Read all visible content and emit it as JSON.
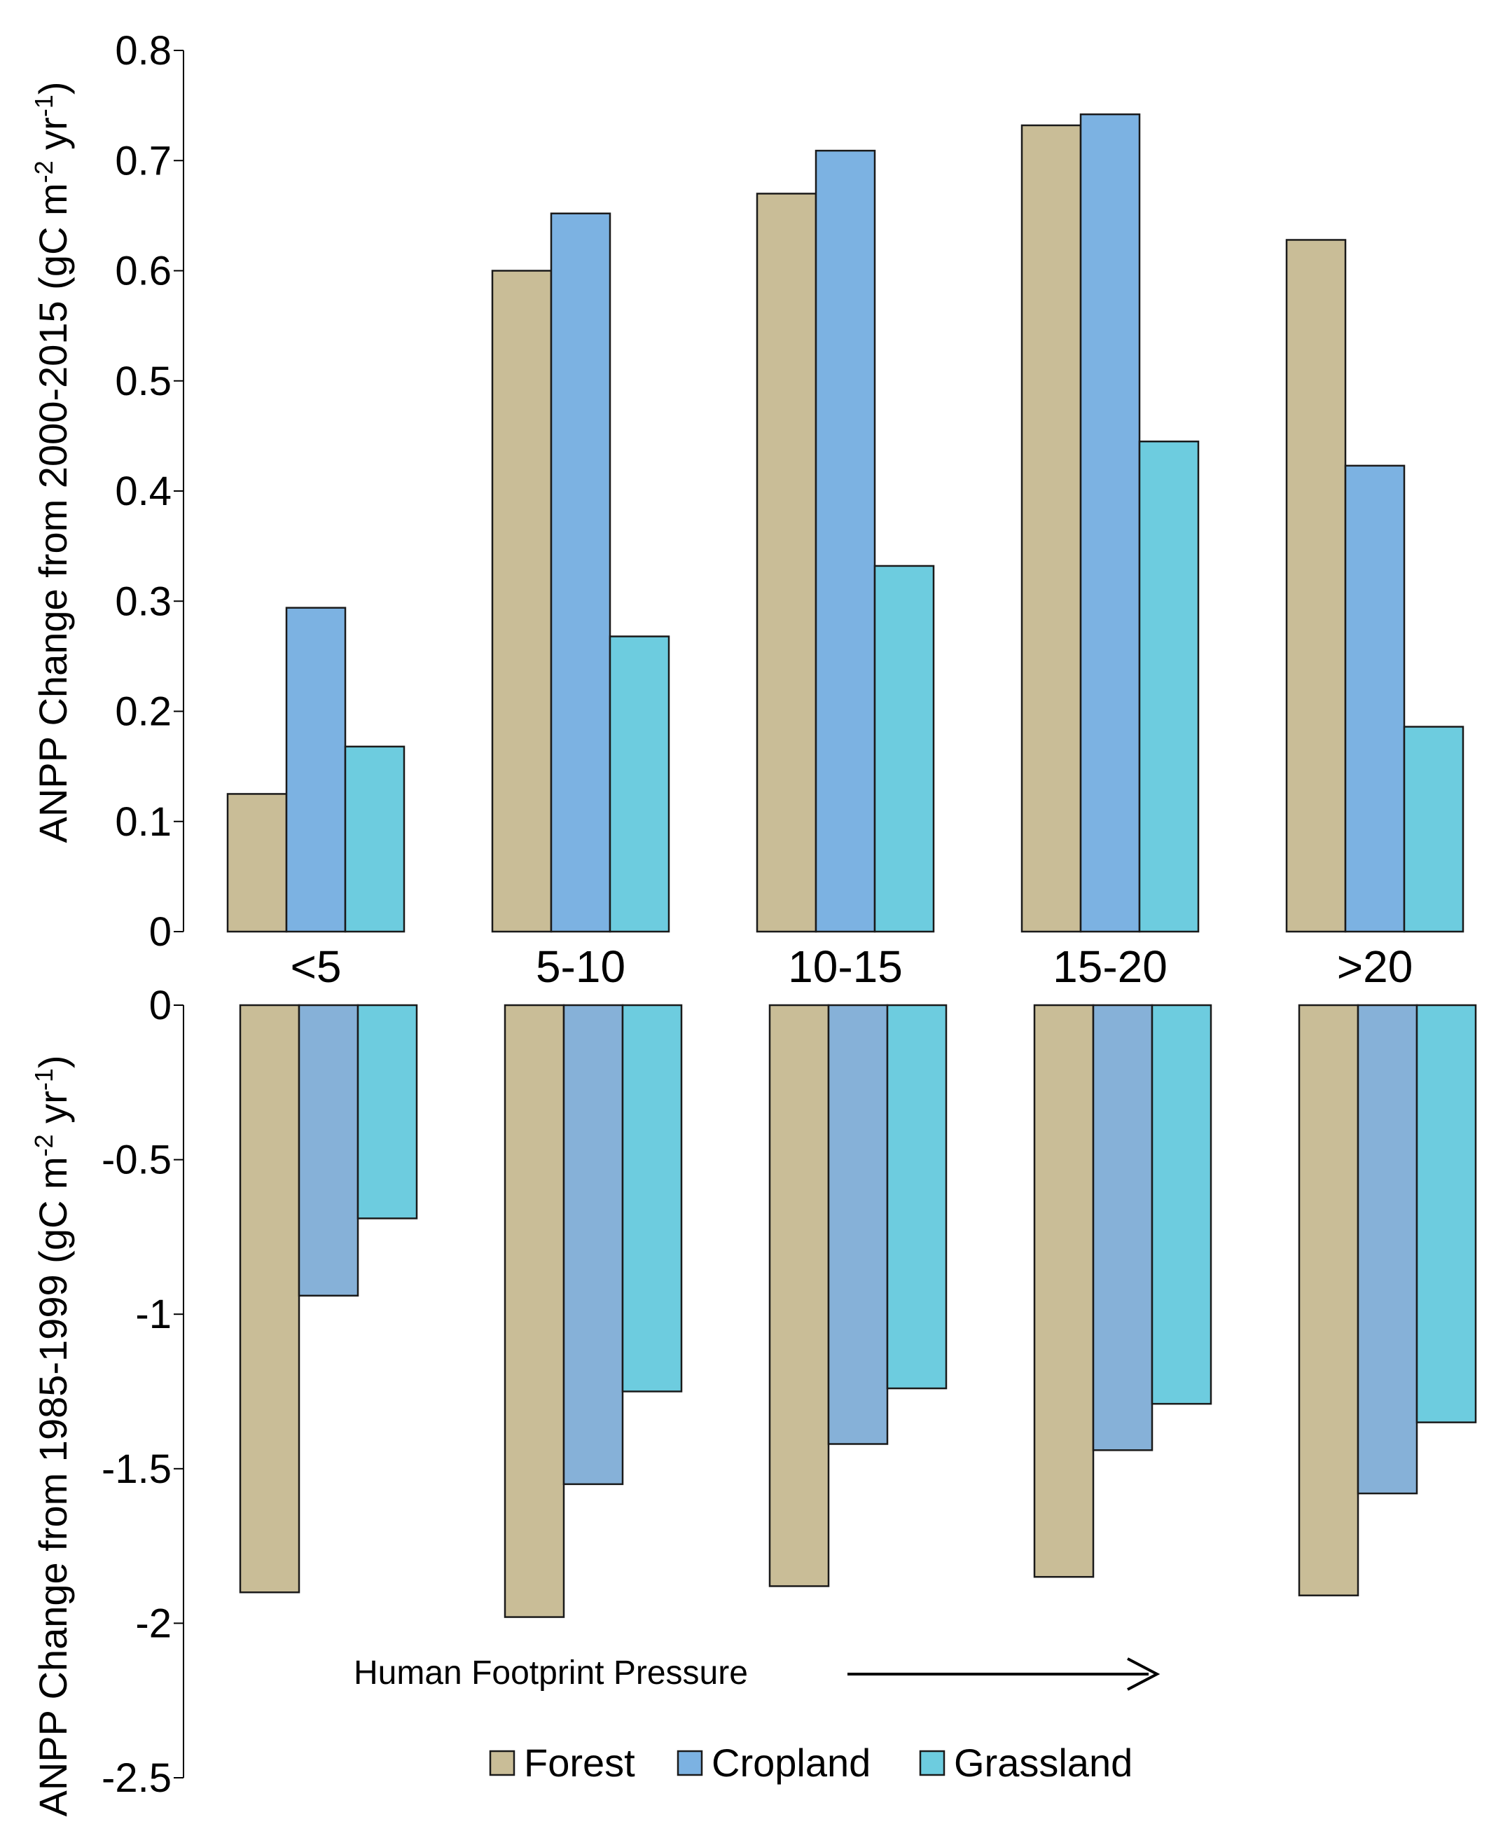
{
  "chart_data": [
    {
      "type": "bar",
      "panel": "top",
      "ylabel": "ANPP Change from 2000-2015 (gC m-2 yr-1)",
      "ylabel_main": "ANPP Change from 2000-2015 (gC m",
      "ylabel_sup1": "-2",
      "ylabel_mid": " yr",
      "ylabel_sup2": "-1",
      "ylabel_end": ")",
      "ylim": [
        0,
        0.8
      ],
      "yticks": [
        0,
        0.1,
        0.2,
        0.3,
        0.4,
        0.5,
        0.6,
        0.7,
        0.8
      ],
      "ytick_labels": [
        "0",
        "0.1",
        "0.2",
        "0.3",
        "0.4",
        "0.5",
        "0.6",
        "0.7",
        "0.8"
      ],
      "categories": [
        "<5",
        "5-10",
        "10-15",
        "15-20",
        ">20"
      ],
      "series": [
        {
          "name": "Forest",
          "values": [
            0.125,
            0.6,
            0.67,
            0.732,
            0.628
          ]
        },
        {
          "name": "Cropland",
          "values": [
            0.294,
            0.652,
            0.709,
            0.742,
            0.423
          ]
        },
        {
          "name": "Grassland",
          "values": [
            0.168,
            0.268,
            0.332,
            0.445,
            0.186
          ]
        }
      ]
    },
    {
      "type": "bar",
      "panel": "bottom",
      "ylabel": "ANPP Change from 1985-1999 (gC m-2 yr-1)",
      "ylabel_main": "ANPP Change from 1985-1999 (gC m",
      "ylabel_sup1": "-2",
      "ylabel_mid": " yr",
      "ylabel_sup2": "-1",
      "ylabel_end": ")",
      "ylim": [
        -2.5,
        0
      ],
      "yticks": [
        0,
        -0.5,
        -1,
        -1.5,
        -2,
        -2.5
      ],
      "ytick_labels": [
        "0",
        "-0.5",
        "-1",
        "-1.5",
        "-2",
        "-2.5"
      ],
      "categories": [
        "<5",
        "5-10",
        "10-15",
        "15-20",
        ">20"
      ],
      "series": [
        {
          "name": "Forest",
          "values": [
            -1.9,
            -1.98,
            -1.88,
            -1.85,
            -1.91
          ]
        },
        {
          "name": "Cropland",
          "values": [
            -0.94,
            -1.55,
            -1.42,
            -1.44,
            -1.58
          ]
        },
        {
          "name": "Grassland",
          "values": [
            -0.69,
            -1.25,
            -1.24,
            -1.29,
            -1.35
          ]
        }
      ],
      "annotation": "Human Footprint Pressure"
    }
  ],
  "legend": [
    {
      "name": "Forest",
      "color": "#c9bd97"
    },
    {
      "name": "Cropland",
      "color": "#7cb2e2"
    },
    {
      "name": "Grassland",
      "color": "#6dccdf"
    }
  ],
  "bottom_cropland_color": "#86b1d8"
}
